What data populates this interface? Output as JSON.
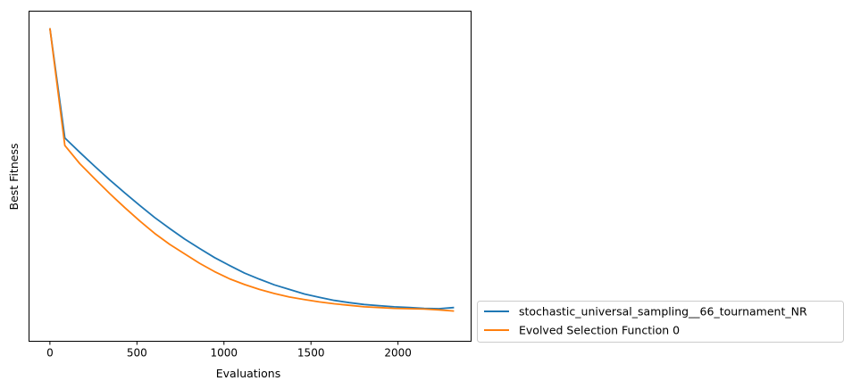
{
  "chart_data": {
    "type": "line",
    "xlabel": "Evaluations",
    "ylabel": "Best Fitness",
    "xlim": [
      -120,
      2420
    ],
    "ylim": [
      0.93,
      9.65
    ],
    "x_ticks": [
      0,
      500,
      1000,
      1500,
      2000
    ],
    "y_ticks_visible": false,
    "grid": false,
    "legend": "outside lower right",
    "colors": [
      "#1f77b4",
      "#ff7f0e"
    ],
    "series": [
      {
        "name": "stochastic_universal_sampling__66_tournament_NR",
        "x": [
          0,
          86,
          172,
          258,
          344,
          430,
          516,
          602,
          688,
          774,
          860,
          946,
          1032,
          1118,
          1204,
          1290,
          1376,
          1462,
          1548,
          1634,
          1720,
          1806,
          1892,
          1978,
          2064,
          2150,
          2236,
          2322
        ],
        "y": [
          9.2,
          6.3,
          5.92,
          5.55,
          5.19,
          4.85,
          4.52,
          4.2,
          3.91,
          3.63,
          3.38,
          3.14,
          2.93,
          2.73,
          2.57,
          2.42,
          2.3,
          2.18,
          2.09,
          2.01,
          1.95,
          1.9,
          1.87,
          1.84,
          1.82,
          1.8,
          1.79,
          1.82
        ]
      },
      {
        "name": "Evolved Selection Function 0",
        "x": [
          0,
          86,
          172,
          258,
          344,
          430,
          516,
          602,
          688,
          774,
          860,
          946,
          1032,
          1118,
          1204,
          1290,
          1376,
          1462,
          1548,
          1634,
          1720,
          1806,
          1892,
          1978,
          2064,
          2150,
          2236,
          2322
        ],
        "y": [
          9.2,
          6.1,
          5.62,
          5.22,
          4.83,
          4.46,
          4.11,
          3.78,
          3.49,
          3.24,
          2.99,
          2.77,
          2.58,
          2.43,
          2.3,
          2.19,
          2.1,
          2.03,
          1.97,
          1.92,
          1.88,
          1.84,
          1.82,
          1.8,
          1.79,
          1.78,
          1.76,
          1.73
        ]
      }
    ]
  }
}
